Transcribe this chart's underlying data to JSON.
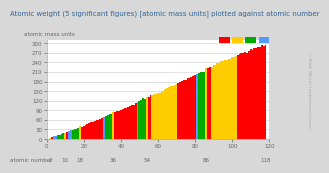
{
  "title": "Atomic weight (5 significant figures) [atomic mass units] plotted against atomic number",
  "ylabel": "atomic mass units",
  "xlabel": "atomic number",
  "xtick_major_positions": [
    0,
    20,
    40,
    60,
    80,
    100,
    120
  ],
  "xtick_major_labels": [
    "0",
    "20",
    "40",
    "60",
    "80",
    "100",
    "120"
  ],
  "xtick_minor_positions": [
    2,
    10,
    18,
    36,
    54,
    86,
    118
  ],
  "xtick_minor_labels": [
    "2",
    "10",
    "18",
    "36",
    "54",
    "86",
    "118"
  ],
  "ytick_positions": [
    0,
    30,
    60,
    90,
    120,
    150,
    180,
    210,
    240,
    270,
    300
  ],
  "ytick_labels": [
    "0",
    "30",
    "60",
    "90",
    "120",
    "150",
    "180",
    "210",
    "240",
    "270",
    "300"
  ],
  "bg_color": "#d8d8d8",
  "plot_bg": "#ffffff",
  "title_color": "#336699",
  "label_color": "#666666",
  "watermark": "© Mark Winter (webelements.com)",
  "legend_colors": [
    "#ff0000",
    "#ffcc00",
    "#00aa00",
    "#5599ff"
  ],
  "atomic_weights": [
    1.0079,
    4.0026,
    6.941,
    9.0122,
    10.811,
    12.011,
    14.007,
    15.999,
    18.998,
    20.18,
    22.99,
    24.305,
    26.982,
    28.086,
    30.974,
    32.065,
    35.453,
    39.948,
    39.098,
    40.078,
    44.956,
    47.867,
    50.942,
    51.996,
    54.938,
    55.845,
    58.933,
    58.693,
    63.546,
    65.38,
    69.723,
    72.63,
    74.922,
    78.96,
    79.904,
    83.798,
    85.468,
    87.62,
    88.906,
    91.224,
    92.906,
    95.96,
    98.0,
    101.07,
    102.906,
    106.42,
    107.868,
    112.411,
    114.818,
    118.71,
    121.76,
    127.6,
    126.904,
    131.293,
    132.905,
    137.327,
    138.905,
    140.116,
    140.908,
    144.242,
    145.0,
    150.36,
    151.964,
    157.25,
    158.925,
    162.5,
    164.93,
    167.259,
    168.934,
    173.054,
    174.967,
    178.49,
    180.948,
    183.84,
    186.207,
    190.23,
    192.217,
    195.084,
    196.967,
    200.59,
    204.383,
    207.2,
    208.98,
    209.0,
    210.0,
    222.0,
    223.0,
    226.0,
    227.0,
    232.038,
    231.036,
    238.029,
    237.0,
    244.0,
    243.0,
    247.0,
    247.0,
    251.0,
    252.0,
    257.0,
    258.0,
    259.0,
    262.0,
    265.0,
    268.0,
    271.0,
    272.0,
    270.0,
    276.0,
    281.0,
    280.0,
    285.0,
    284.0,
    289.0,
    288.0,
    293.0,
    292.0,
    294.0
  ],
  "bar_colors": [
    "#ff0000",
    "#ffcc00",
    "#ff0000",
    "#5599ff",
    "#5599ff",
    "#00aa00",
    "#00aa00",
    "#00aa00",
    "#00aa00",
    "#ffcc00",
    "#ff0000",
    "#5599ff",
    "#5599ff",
    "#00aa00",
    "#00aa00",
    "#00aa00",
    "#00aa00",
    "#ffcc00",
    "#ff0000",
    "#ff0000",
    "#ff0000",
    "#ff0000",
    "#ff0000",
    "#ff0000",
    "#ff0000",
    "#ff0000",
    "#ff0000",
    "#ff0000",
    "#ff0000",
    "#ff0000",
    "#5599ff",
    "#00aa00",
    "#00aa00",
    "#00aa00",
    "#00aa00",
    "#ffcc00",
    "#ff0000",
    "#ff0000",
    "#ff0000",
    "#ff0000",
    "#ff0000",
    "#ff0000",
    "#ff0000",
    "#ff0000",
    "#ff0000",
    "#ff0000",
    "#ff0000",
    "#ff0000",
    "#5599ff",
    "#00aa00",
    "#00aa00",
    "#00aa00",
    "#00aa00",
    "#ffcc00",
    "#ff0000",
    "#ff0000",
    "#ffcc00",
    "#ffcc00",
    "#ffcc00",
    "#ffcc00",
    "#ffcc00",
    "#ffcc00",
    "#ffcc00",
    "#ffcc00",
    "#ffcc00",
    "#ffcc00",
    "#ffcc00",
    "#ffcc00",
    "#ffcc00",
    "#ffcc00",
    "#ff0000",
    "#ff0000",
    "#ff0000",
    "#ff0000",
    "#ff0000",
    "#ff0000",
    "#ff0000",
    "#ff0000",
    "#ff0000",
    "#ff0000",
    "#5599ff",
    "#00aa00",
    "#00aa00",
    "#00aa00",
    "#00aa00",
    "#ffcc00",
    "#ff0000",
    "#ff0000",
    "#ffcc00",
    "#ffcc00",
    "#ffcc00",
    "#ffcc00",
    "#ffcc00",
    "#ffcc00",
    "#ffcc00",
    "#ffcc00",
    "#ffcc00",
    "#ffcc00",
    "#ffcc00",
    "#ffcc00",
    "#ffcc00",
    "#ffcc00",
    "#ff0000",
    "#ff0000",
    "#ff0000",
    "#ff0000",
    "#ff0000",
    "#ff0000",
    "#ff0000",
    "#ff0000",
    "#ff0000",
    "#ff0000",
    "#ff0000",
    "#ff0000",
    "#ff0000",
    "#ff0000",
    "#ff0000",
    "#ff0000",
    "#ff0000",
    "#ff0000"
  ],
  "xlim": [
    0,
    120
  ],
  "ylim": [
    0,
    310
  ]
}
